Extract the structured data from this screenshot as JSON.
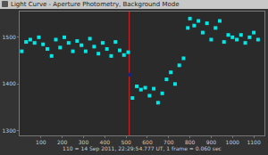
{
  "chart_data": {
    "type": "scatter",
    "title": "Light Curve - Aperture Photometry, Background Mode",
    "x_label": "110 = 14 Sep 2011, 22:29:54.777 UT, 1 frame = 0.060 sec",
    "x": [
      10,
      30,
      50,
      70,
      90,
      110,
      130,
      150,
      170,
      190,
      210,
      230,
      250,
      270,
      290,
      310,
      330,
      350,
      370,
      390,
      410,
      430,
      450,
      470,
      490,
      510,
      520,
      530,
      550,
      570,
      590,
      610,
      630,
      650,
      670,
      690,
      710,
      730,
      750,
      770,
      790,
      800,
      820,
      840,
      860,
      880,
      900,
      920,
      940,
      960,
      980,
      1000,
      1020,
      1040,
      1060,
      1080,
      1100,
      1120
    ],
    "values": [
      1470,
      1490,
      1495,
      1488,
      1500,
      1485,
      1475,
      1460,
      1495,
      1478,
      1500,
      1488,
      1470,
      1492,
      1483,
      1470,
      1497,
      1480,
      1465,
      1488,
      1475,
      1460,
      1490,
      1472,
      1462,
      1468,
      1420,
      1370,
      1395,
      1388,
      1392,
      1375,
      1390,
      1360,
      1380,
      1410,
      1425,
      1400,
      1440,
      1455,
      1520,
      1540,
      1525,
      1535,
      1510,
      1530,
      1495,
      1520,
      1535,
      1490,
      1505,
      1500,
      1495,
      1505,
      1488,
      1500,
      1510,
      1495
    ],
    "colors": [
      "#00e8e8",
      "#00e8e8",
      "#00e8e8",
      "#00e8e8",
      "#00e8e8",
      "#00e8e8",
      "#00e8e8",
      "#00e8e8",
      "#00e8e8",
      "#00e8e8",
      "#00e8e8",
      "#00e8e8",
      "#00e8e8",
      "#00e8e8",
      "#00e8e8",
      "#00e8e8",
      "#00e8e8",
      "#00e8e8",
      "#00e8e8",
      "#00e8e8",
      "#00e8e8",
      "#00e8e8",
      "#00e8e8",
      "#00e8e8",
      "#00e8e8",
      "#00e8e8",
      "#1a237e",
      "#00e8e8",
      "#00e8e8",
      "#00e8e8",
      "#00e8e8",
      "#00e8e8",
      "#00e8e8",
      "#00e8e8",
      "#00e8e8",
      "#00e8e8",
      "#00e8e8",
      "#00e8e8",
      "#00e8e8",
      "#00e8e8",
      "#00e8e8",
      "#00e8e8",
      "#00e8e8",
      "#00e8e8",
      "#00e8e8",
      "#00e8e8",
      "#00e8e8",
      "#00e8e8",
      "#00e8e8",
      "#00e8e8",
      "#00e8e8",
      "#00e8e8",
      "#00e8e8",
      "#00e8e8",
      "#00e8e8",
      "#00e8e8",
      "#00e8e8",
      "#00e8e8"
    ],
    "marker": "square",
    "cursor_x": 515,
    "cursor_color": "#e02020",
    "xlim": [
      0,
      1150
    ],
    "xticks": [
      100,
      200,
      300,
      400,
      500,
      600,
      700,
      800,
      900,
      1000,
      1100
    ],
    "ylim": [
      1290,
      1555
    ],
    "yticks": [
      1300,
      1400,
      1500
    ],
    "grid": false
  }
}
